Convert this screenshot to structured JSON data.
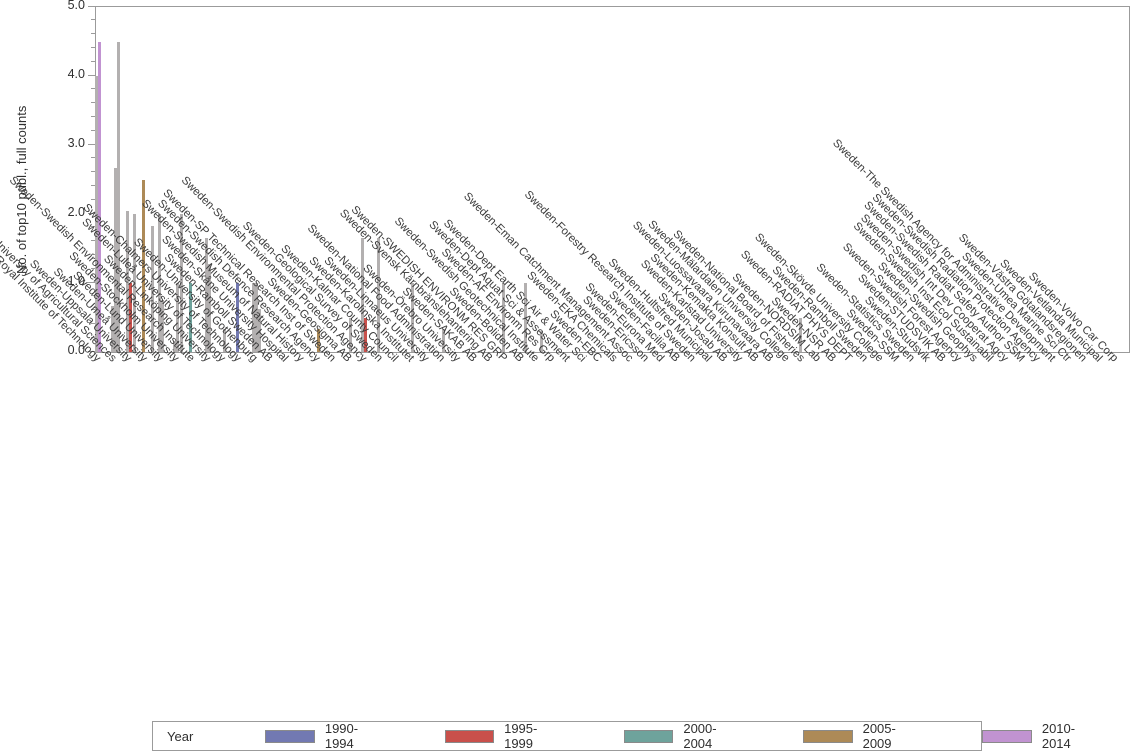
{
  "chart_data": {
    "type": "bar",
    "title": "",
    "xlabel": "",
    "ylabel": "No. of top10 publ., full counts",
    "ylim": [
      0.0,
      5.0
    ],
    "yticks": [
      "0.0",
      "1.0",
      "2.0",
      "3.0",
      "4.0",
      "5.0"
    ],
    "y_minor_tick_step": 0.2,
    "grid": false,
    "legend_position": "bottom",
    "legend_title": "Year",
    "year_groups": [
      {
        "label": "1990-1994",
        "color": "#7279b2"
      },
      {
        "label": "1995-1999",
        "color": "#c9504b"
      },
      {
        "label": "2000-2004",
        "color": "#6ea39c"
      },
      {
        "label": "2005-2009",
        "color": "#ad8a57"
      },
      {
        "label": "2010-2014",
        "color": "#c193d1"
      }
    ],
    "unidentified_bar_color": "#b3b0b0",
    "institutions": [
      {
        "name": "Sweden-Royal Institute of Technology",
        "bars": [
          {
            "v": 4.0,
            "slot": 0,
            "year": null
          },
          {
            "v": 4.5,
            "slot": 1,
            "year": "2010-2014"
          }
        ]
      },
      {
        "name": "Sweden-Swedish University of Agricultural Sciences",
        "bars": [
          {
            "v": 0.67,
            "slot": 0,
            "year": null
          },
          {
            "v": 2.67,
            "slot": 1,
            "year": null
          },
          {
            "v": 4.5,
            "slot": 2,
            "year": null
          }
        ]
      },
      {
        "name": "Sweden-Uppsala University",
        "bars": [
          {
            "v": 2.05,
            "slot": 0,
            "year": null
          },
          {
            "v": 1.0,
            "slot": 1,
            "year": "1995-1999"
          },
          {
            "v": 2.0,
            "slot": 2,
            "year": null
          }
        ]
      },
      {
        "name": "Sweden-Umeå University",
        "bars": [
          {
            "v": 2.5,
            "slot": 0,
            "year": "2005-2009"
          },
          {
            "v": 1.82,
            "slot": 3,
            "year": null
          }
        ]
      },
      {
        "name": "Sweden-Lund University",
        "bars": [
          {
            "v": 2.0,
            "slot": 0,
            "year": null
          },
          {
            "v": 0.75,
            "slot": 1,
            "year": null
          }
        ]
      },
      {
        "name": "Sweden-Stockholm University",
        "bars": [
          {
            "v": 0.16,
            "slot": 0,
            "year": null
          },
          {
            "v": 1.0,
            "slot": 1,
            "year": null
          },
          {
            "v": 2.0,
            "slot": 2,
            "year": null
          }
        ]
      },
      {
        "name": "Sweden-Swedish Environmental Research Institute",
        "bars": [
          {
            "v": 1.0,
            "slot": 0,
            "year": "2000-2004"
          }
        ]
      },
      {
        "name": "Sweden-Linköping University",
        "bars": [
          {
            "v": 1.65,
            "slot": 0,
            "year": null
          },
          {
            "v": 1.27,
            "slot": 1,
            "year": null
          }
        ]
      },
      {
        "name": "Sweden-Luleå University of Technology",
        "bars": [
          {
            "v": 0.33,
            "slot": 1,
            "year": null
          }
        ]
      },
      {
        "name": "Sweden-Chalmers University of Technology",
        "bars": [
          {
            "v": 1.0,
            "slot": 0,
            "year": "1990-1994"
          }
        ]
      },
      {
        "name": "Sweden-University of Gothenburg",
        "bars": [
          {
            "v": 1.0,
            "slot": 0,
            "year": null
          },
          {
            "v": 1.0,
            "slot": 1,
            "year": null
          },
          {
            "v": 0.63,
            "slot": 2,
            "year": null
          }
        ]
      },
      {
        "name": "Sweden-Ramboll Sweden AB",
        "bars": []
      },
      {
        "name": "Sweden-Skåne University Hospital",
        "bars": []
      },
      {
        "name": "Sweden-Swedish Museum of Natural History",
        "bars": []
      },
      {
        "name": "Sweden-Swedish Defence Research Agency",
        "bars": [
          {
            "v": 0.33,
            "slot": 1,
            "year": "2005-2009"
          }
        ]
      },
      {
        "name": "Sweden-SP Technical Research Inst of Sweden",
        "bars": []
      },
      {
        "name": "Sweden-Geosigma AB",
        "bars": [
          {
            "v": 0.5,
            "slot": 1,
            "year": null
          }
        ]
      },
      {
        "name": "Sweden-Swedish Environmental Protection Agency",
        "bars": [
          {
            "v": 1.65,
            "slot": 0,
            "year": null
          },
          {
            "v": 0.5,
            "slot": 1,
            "year": "1995-1999"
          }
        ]
      },
      {
        "name": "Sweden-Geological Survey of Sweden",
        "bars": [
          {
            "v": 1.65,
            "slot": 0,
            "year": null
          }
        ]
      },
      {
        "name": "Sweden-Kalmar County Council",
        "bars": []
      },
      {
        "name": "Sweden-Karolinska Institutet",
        "bars": [
          {
            "v": 1.0,
            "slot": 1,
            "year": null
          }
        ]
      },
      {
        "name": "Sweden-Linnaeus University",
        "bars": []
      },
      {
        "name": "Sweden-National Food Administration",
        "bars": [
          {
            "v": 0.33,
            "slot": 1,
            "year": null
          }
        ]
      },
      {
        "name": "Sweden-Örebro University",
        "bars": []
      },
      {
        "name": "Sweden-SAKAB AB",
        "bars": []
      },
      {
        "name": "Sweden-Svensk Kärnbränslehantering AB",
        "bars": []
      },
      {
        "name": "Sweden-SWEDISH ENVIRONM RES GRP",
        "bars": [
          {
            "v": 1.0,
            "slot": 0,
            "year": null
          }
        ]
      },
      {
        "name": "Sweden-Boliden AB",
        "bars": [
          {
            "v": 1.0,
            "slot": 2,
            "year": null
          }
        ]
      },
      {
        "name": "Sweden-Swedish Geotechnical Institute",
        "bars": [
          {
            "v": 0.3,
            "slot": 2,
            "year": null
          }
        ]
      },
      {
        "name": "Sweden-AF Environm Res Grp",
        "bars": []
      },
      {
        "name": "Sweden-Dept Aquat Sci & Assessment",
        "bars": []
      },
      {
        "name": "Sweden-Dept Earth Sci Air & Water Sci",
        "bars": []
      },
      {
        "name": "Sweden-EBC",
        "bars": []
      },
      {
        "name": "Sweden-EKA Chemicals",
        "bars": []
      },
      {
        "name": "Sweden-Eman Catchment Management Assoc",
        "bars": []
      },
      {
        "name": "Sweden-Ericsson",
        "bars": []
      },
      {
        "name": "Sweden-Eurona Med",
        "bars": []
      },
      {
        "name": "Sweden-Facilia AB",
        "bars": []
      },
      {
        "name": "Sweden-Forestry Research Institute of Sweden",
        "bars": []
      },
      {
        "name": "Sweden-Hultsfred Municipal",
        "bars": []
      },
      {
        "name": "Sweden-Josab AB",
        "bars": []
      },
      {
        "name": "Sweden-Karlstad University",
        "bars": []
      },
      {
        "name": "Sweden-Kemakta Konsult AB",
        "bars": []
      },
      {
        "name": "Sweden-Luossavaara Kiirunavaara AB",
        "bars": []
      },
      {
        "name": "Sweden-Mälardalen University College",
        "bars": []
      },
      {
        "name": "Sweden-National Board of Fisheries",
        "bars": [
          {
            "v": 0.5,
            "slot": 0,
            "year": null
          }
        ]
      },
      {
        "name": "Sweden-NORDSIM Lab",
        "bars": []
      },
      {
        "name": "Sweden-NSR AB",
        "bars": []
      },
      {
        "name": "Sweden-RADIAT PHYS DEPT",
        "bars": []
      },
      {
        "name": "Sweden-Ramboll Sweden",
        "bars": []
      },
      {
        "name": "Sweden-Skövde University College",
        "bars": []
      },
      {
        "name": "Sweden-SSM",
        "bars": []
      },
      {
        "name": "Sweden-Statistics Sweden",
        "bars": []
      },
      {
        "name": "Sweden-Studsvik",
        "bars": []
      },
      {
        "name": "Sweden-STUDSVIK AB",
        "bars": []
      },
      {
        "name": "Sweden-Swedish Forest Agency",
        "bars": []
      },
      {
        "name": "Sweden-Swedish Geophys",
        "bars": []
      },
      {
        "name": "Sweden-Swedish Inst Ecol Sustainabil",
        "bars": []
      },
      {
        "name": "Sweden-Swedish Int Dev Cooperat Agcy",
        "bars": []
      },
      {
        "name": "Sweden-Swedish Radiat Safety Author SSM",
        "bars": []
      },
      {
        "name": "Sweden-Swedish Radiation Protection Agency",
        "bars": []
      },
      {
        "name": "Sweden-The Swedish Agency for Administrative Development",
        "bars": []
      },
      {
        "name": "Sweden-Umea Marine Sci Ctr",
        "bars": []
      },
      {
        "name": "Sweden-Västra Götalandsregionen",
        "bars": []
      },
      {
        "name": "Sweden-Vetlanda Municipal",
        "bars": []
      },
      {
        "name": "Sweden-Volvo Car Corp",
        "bars": []
      }
    ]
  }
}
